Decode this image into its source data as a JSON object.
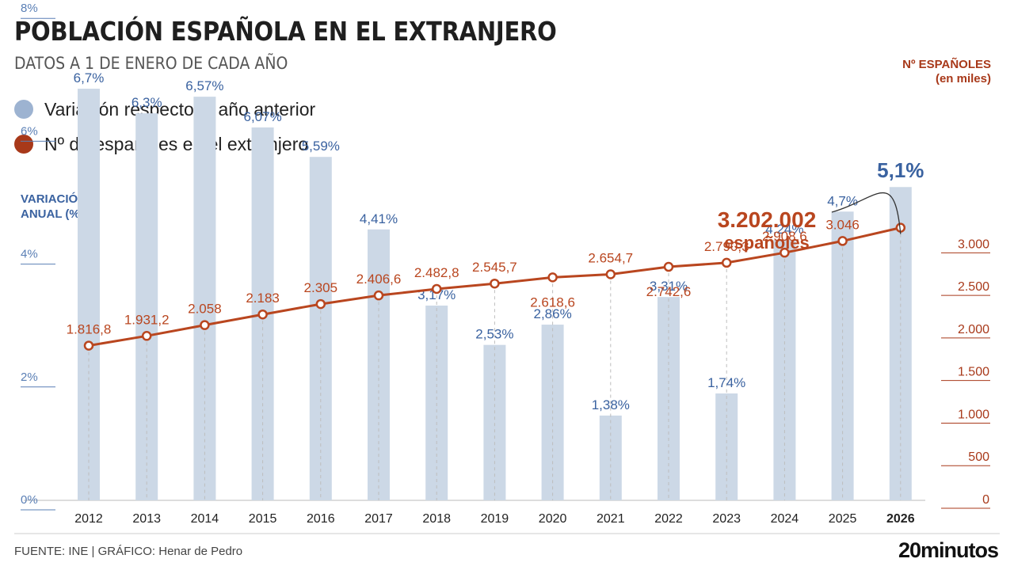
{
  "header": {
    "title": "POBLACIÓN ESPAÑOLA EN EL EXTRANJERO",
    "subtitle": "DATOS A 1 DE ENERO DE CADA AÑO"
  },
  "legend": [
    {
      "label": "Variación respecto al año anterior",
      "color": "#9db3d1"
    },
    {
      "label": "Nº de españoles en el extranjero",
      "color": "#a8391a"
    }
  ],
  "footer": {
    "source": "FUENTE: INE  |  GRÁFICO: Henar de Pedro",
    "logo": "20minutos"
  },
  "colors": {
    "bar": "#ccd8e6",
    "bar_label": "#3a62a0",
    "line": "#b9461f",
    "axis_left": "#5a7fb5",
    "axis_right": "#a8391a"
  },
  "chart_data": {
    "type": "bar",
    "categories": [
      "2012",
      "2013",
      "2014",
      "2015",
      "2016",
      "2017",
      "2018",
      "2019",
      "2020",
      "2021",
      "2022",
      "2023",
      "2024",
      "2025",
      "2026"
    ],
    "y_left": {
      "label_lines": [
        "VARIACIÓN",
        "ANUAL (%)"
      ],
      "ylim": [
        0,
        8
      ],
      "ticks": [
        0,
        2,
        4,
        6,
        8
      ],
      "tick_labels": [
        "0%",
        "2%",
        "4%",
        "6%",
        "8%"
      ]
    },
    "y_right": {
      "label_lines": [
        "Nº ESPAÑOLES",
        "(en miles)"
      ],
      "ylim": [
        0,
        3000
      ],
      "ticks": [
        0,
        500,
        1000,
        1500,
        2000,
        2500,
        3000
      ],
      "tick_labels": [
        "0",
        "500",
        "1.000",
        "1.500",
        "2.000",
        "2.500",
        "3.000"
      ]
    },
    "series": [
      {
        "name": "Variación respecto al año anterior",
        "type": "bar",
        "axis": "left",
        "values": [
          6.7,
          6.3,
          6.57,
          6.07,
          5.59,
          4.41,
          3.17,
          2.53,
          2.86,
          1.38,
          3.31,
          1.74,
          4.24,
          4.7,
          5.1
        ],
        "labels": [
          "6,7%",
          "6,3%",
          "6,57%",
          "6,07%",
          "5,59%",
          "4,41%",
          "3,17%",
          "2,53%",
          "2,86%",
          "1,38%",
          "3,31%",
          "1,74%",
          "4,24%",
          "4,7%",
          "5,1%"
        ]
      },
      {
        "name": "Nº de españoles en el extranjero",
        "type": "line",
        "axis": "right",
        "values": [
          1816.8,
          1931.2,
          2058,
          2183,
          2305,
          2406.6,
          2482.8,
          2545.7,
          2618.6,
          2654.7,
          2742.6,
          2790.3,
          2908.6,
          3046,
          3202
        ],
        "labels": [
          "1.816,8",
          "1.931,2",
          "2.058",
          "2.183",
          "2.305",
          "2.406,6",
          "2.482,8",
          "2.545,7",
          "2.618,6",
          "2.654,7",
          "2.742,6",
          "2.790,3",
          "2.908,6",
          "3.046",
          ""
        ]
      }
    ],
    "annotation": {
      "value": "3.202.002",
      "text": "españoles"
    },
    "grid": false
  }
}
